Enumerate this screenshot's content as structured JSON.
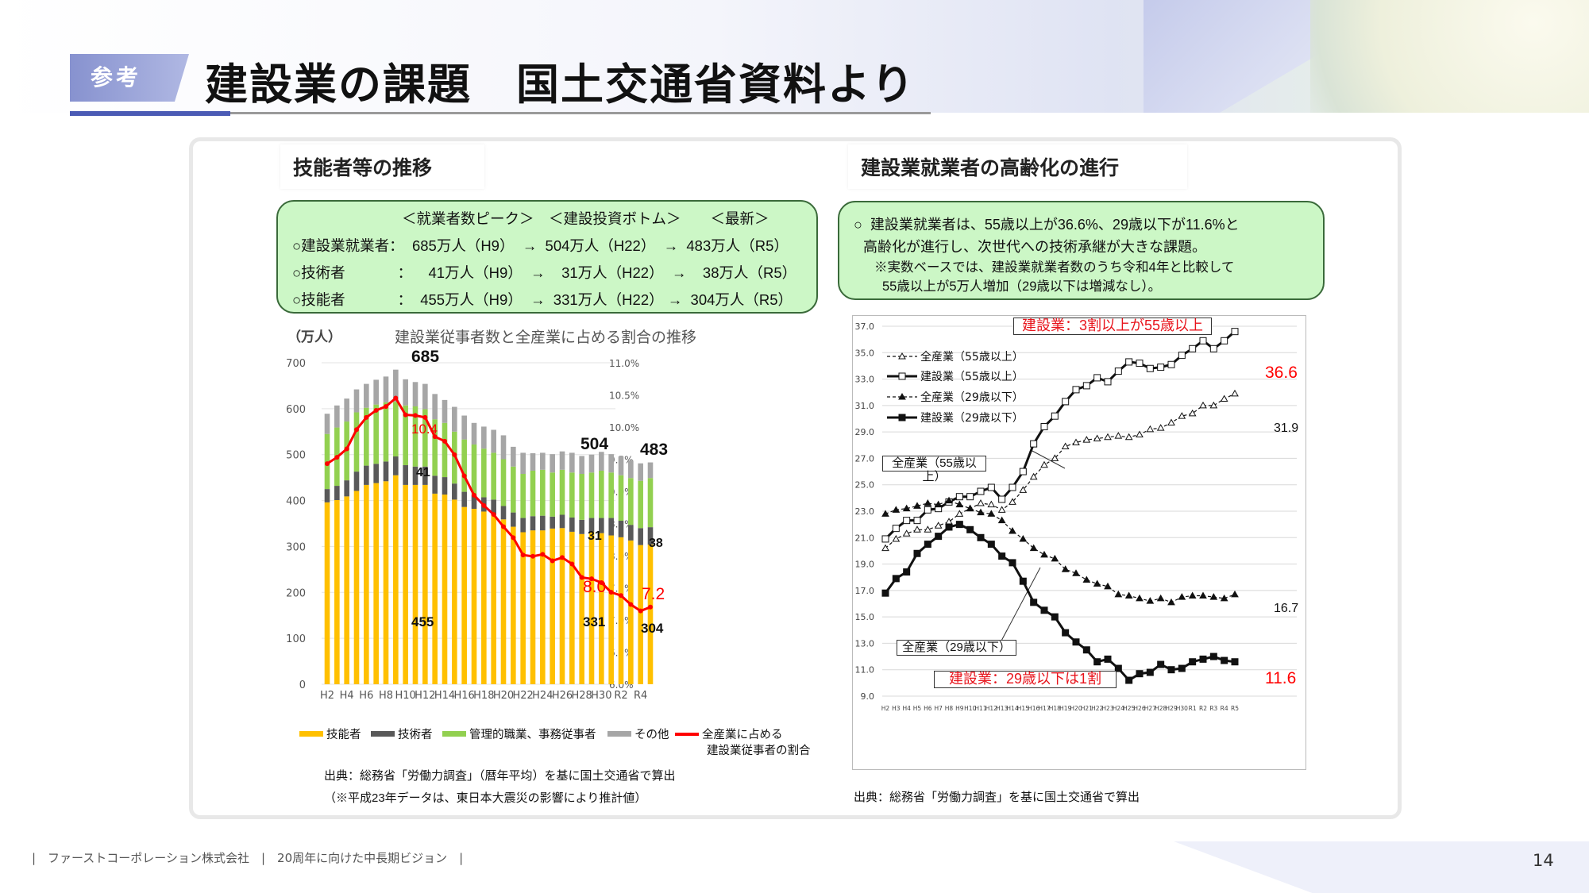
{
  "header": {
    "badge": "参考",
    "title": "建設業の課題　国土交通省資料より"
  },
  "left": {
    "heading": "技能者等の推移",
    "summary": {
      "cols": "＜就業者数ピーク＞　＜建設投資ボトム＞　　＜最新＞",
      "rows": [
        "○建設業就業者：  685万人（H9）  →  504万人（H22）  →  483万人（R5）",
        "○技術者　　　  ：    41万人（H9）  →    31万人（H22）  →    38万人（R5）",
        "○技能者　　　  ：  455万人（H9）  →  331万人（H22） →  304万人（R5）"
      ]
    },
    "unit": "（万人）",
    "source": "出典：総務省「労働力調査」（暦年平均）を基に国土交通省で算出",
    "note": "（※平成23年データは、東日本大震災の影響により推計値）"
  },
  "right": {
    "heading": "建設業就業者の高齢化の進行",
    "summary": [
      "○  建設業就業者は、55歳以上が36.6%、29歳以下が11.6%と",
      "高齢化が進行し、次世代への技術承継が大きな課題。",
      "※実数ベースでは、建設業就業者数のうち令和4年と比較して",
      "55歳以上が5万人増加（29歳以下は増減なし）。"
    ],
    "source": "出典：総務省「労働力調査」を基に国土交通省で算出"
  },
  "chart_data": [
    {
      "type": "bar",
      "stacked": true,
      "title": "建設業従事者数と全産業に占める割合の推移",
      "ylabel": "（万人）",
      "ylim": [
        0,
        700
      ],
      "y2lim": [
        6.0,
        11.0
      ],
      "yticks": [
        "0",
        "100",
        "200",
        "300",
        "400",
        "500",
        "600",
        "700"
      ],
      "y2ticks": [
        "6.0%",
        "6.5%",
        "7.0%",
        "7.5%",
        "8.0%",
        "8.5%",
        "9.0%",
        "9.5%",
        "10.0%",
        "10.5%",
        "11.0%"
      ],
      "categories": [
        "H2",
        "H3",
        "H4",
        "H5",
        "H6",
        "H7",
        "H8",
        "H9",
        "H10",
        "H11",
        "H12",
        "H13",
        "H14",
        "H15",
        "H16",
        "H17",
        "H18",
        "H19",
        "H20",
        "H21",
        "H22",
        "H23",
        "H24",
        "H25",
        "H26",
        "H27",
        "H28",
        "H29",
        "H30",
        "R1",
        "R2",
        "R3",
        "R4",
        "R5"
      ],
      "xticklabels": [
        "H2",
        "H4",
        "H6",
        "H8",
        "H10",
        "H12",
        "H14",
        "H16",
        "H18",
        "H20",
        "H22",
        "H24",
        "H26",
        "H28",
        "H30",
        "R2",
        "R4"
      ],
      "series": [
        {
          "name": "技能者",
          "color": "#ffc000",
          "values": [
            396,
            401,
            409,
            421,
            434,
            438,
            442,
            455,
            434,
            434,
            434,
            415,
            413,
            402,
            386,
            382,
            376,
            369,
            359,
            343,
            331,
            335,
            335,
            339,
            340,
            332,
            327,
            332,
            329,
            324,
            320,
            313,
            303,
            304
          ]
        },
        {
          "name": "技術者",
          "color": "#595959",
          "values": [
            29,
            31,
            35,
            42,
            42,
            42,
            43,
            41,
            43,
            40,
            40,
            39,
            38,
            35,
            33,
            30,
            31,
            33,
            29,
            31,
            31,
            31,
            32,
            26,
            29,
            31,
            31,
            30,
            33,
            38,
            36,
            34,
            37,
            38
          ]
        },
        {
          "name": "管理的職業、事務従事者",
          "color": "#92d050",
          "values": [
            120,
            127,
            128,
            129,
            126,
            129,
            129,
            119,
            130,
            131,
            125,
            123,
            118,
            113,
            114,
            110,
            106,
            102,
            102,
            100,
            96,
            99,
            100,
            96,
            98,
            98,
            100,
            99,
            103,
            99,
            99,
            102,
            103,
            107
          ]
        },
        {
          "name": "その他",
          "color": "#a6a6a6",
          "values": [
            44,
            48,
            50,
            50,
            52,
            54,
            56,
            70,
            57,
            53,
            55,
            55,
            50,
            54,
            52,
            47,
            48,
            50,
            52,
            43,
            46,
            38,
            37,
            40,
            40,
            43,
            39,
            39,
            41,
            40,
            41,
            38,
            38,
            34
          ]
        }
      ],
      "line": {
        "name": "全産業に占める建設業従事者の割合",
        "axis": "right",
        "color": "#ff0000",
        "values": [
          9.43,
          9.53,
          9.66,
          9.96,
          10.15,
          10.26,
          10.32,
          10.45,
          10.19,
          10.18,
          10.15,
          9.85,
          9.78,
          9.57,
          9.24,
          8.94,
          8.78,
          8.64,
          8.45,
          8.28,
          8.01,
          7.99,
          8.02,
          7.92,
          7.97,
          7.87,
          7.66,
          7.64,
          7.58,
          7.43,
          7.38,
          7.24,
          7.14,
          7.2
        ]
      },
      "legend": [
        "技能者",
        "技術者",
        "管理的職業、事務従事者",
        "その他",
        "全産業に占める",
        "建設業従事者の割合"
      ],
      "annotations": {
        "peak_total": "685",
        "bottom_total": "504",
        "latest_total": "483",
        "peak_pct": "10.4",
        "bottom_pct": "8.0",
        "latest_pct": "7.2",
        "peak_tech": "41",
        "bottom_tech": "31",
        "latest_tech": "38",
        "peak_skill": "455",
        "bottom_skill": "331",
        "latest_skill": "304"
      }
    },
    {
      "type": "line",
      "ylim": [
        9.0,
        37.0
      ],
      "yticks": [
        "9.0",
        "11.0",
        "13.0",
        "15.0",
        "17.0",
        "19.0",
        "21.0",
        "23.0",
        "25.0",
        "27.0",
        "29.0",
        "31.0",
        "33.0",
        "35.0",
        "37.0"
      ],
      "categories": [
        "H2",
        "H3",
        "H4",
        "H5",
        "H6",
        "H7",
        "H8",
        "H9",
        "H10",
        "H11",
        "H12",
        "H13",
        "H14",
        "H15",
        "H16",
        "H17",
        "H18",
        "H19",
        "H20",
        "H21",
        "H22",
        "H23",
        "H24",
        "H25",
        "H26",
        "H27",
        "H28",
        "H29",
        "H30",
        "R1",
        "R2",
        "R3",
        "R4",
        "R5"
      ],
      "series": [
        {
          "name": "全産業（55歳以上）",
          "style": "dashed-open-triangle",
          "values": [
            20.2,
            20.9,
            21.3,
            21.6,
            21.6,
            21.9,
            22.2,
            22.8,
            23.2,
            23.6,
            23.5,
            23.1,
            23.7,
            24.6,
            25.6,
            26.5,
            27.0,
            27.9,
            28.2,
            28.4,
            28.5,
            28.6,
            28.7,
            28.6,
            28.8,
            29.2,
            29.3,
            29.7,
            30.2,
            30.4,
            31.0,
            31.0,
            31.5,
            31.9
          ]
        },
        {
          "name": "建設業（55歳以上）",
          "style": "solid-open-square",
          "values": [
            20.9,
            21.7,
            22.3,
            22.3,
            23.1,
            23.2,
            23.7,
            24.1,
            24.1,
            24.5,
            24.8,
            23.9,
            24.8,
            26.0,
            28.1,
            29.4,
            30.2,
            31.3,
            32.2,
            32.5,
            33.1,
            32.8,
            33.6,
            34.3,
            34.2,
            33.8,
            33.9,
            34.1,
            34.8,
            35.3,
            35.9,
            35.3,
            35.9,
            36.6
          ]
        },
        {
          "name": "全産業（29歳以下）",
          "style": "dashed-filled-triangle",
          "values": [
            22.8,
            23.1,
            23.2,
            23.4,
            23.6,
            23.5,
            23.8,
            23.5,
            23.2,
            22.9,
            22.8,
            22.3,
            21.5,
            20.9,
            20.2,
            19.7,
            19.4,
            18.6,
            18.3,
            17.8,
            17.5,
            17.3,
            16.7,
            16.6,
            16.4,
            16.2,
            16.4,
            16.1,
            16.5,
            16.6,
            16.6,
            16.5,
            16.4,
            16.7
          ]
        },
        {
          "name": "建設業（29歳以下）",
          "style": "solid-filled-square",
          "values": [
            16.8,
            17.9,
            18.4,
            19.8,
            20.5,
            21.1,
            21.8,
            22.0,
            21.6,
            21.0,
            20.5,
            19.6,
            19.1,
            17.7,
            16.1,
            15.5,
            15.0,
            13.8,
            13.1,
            12.5,
            11.6,
            11.8,
            11.1,
            10.2,
            10.7,
            10.8,
            11.4,
            11.0,
            11.1,
            11.6,
            11.8,
            12.0,
            11.7,
            11.6
          ]
        }
      ],
      "annotations": {
        "top_box": "建設業：3割以上が55歳以上",
        "bottom_box": "建設業：29歳以下は1割",
        "callout_55": "全産業（55歳以上）",
        "callout_29": "全産業（29歳以下）",
        "end_c55": "36.6",
        "end_a55": "31.9",
        "end_a29": "16.7",
        "end_c29": "11.6"
      }
    }
  ],
  "footer": {
    "company": "|　ファーストコーポレーション株式会社　|　20周年に向けた中長期ビジョン　|",
    "page": "14"
  }
}
